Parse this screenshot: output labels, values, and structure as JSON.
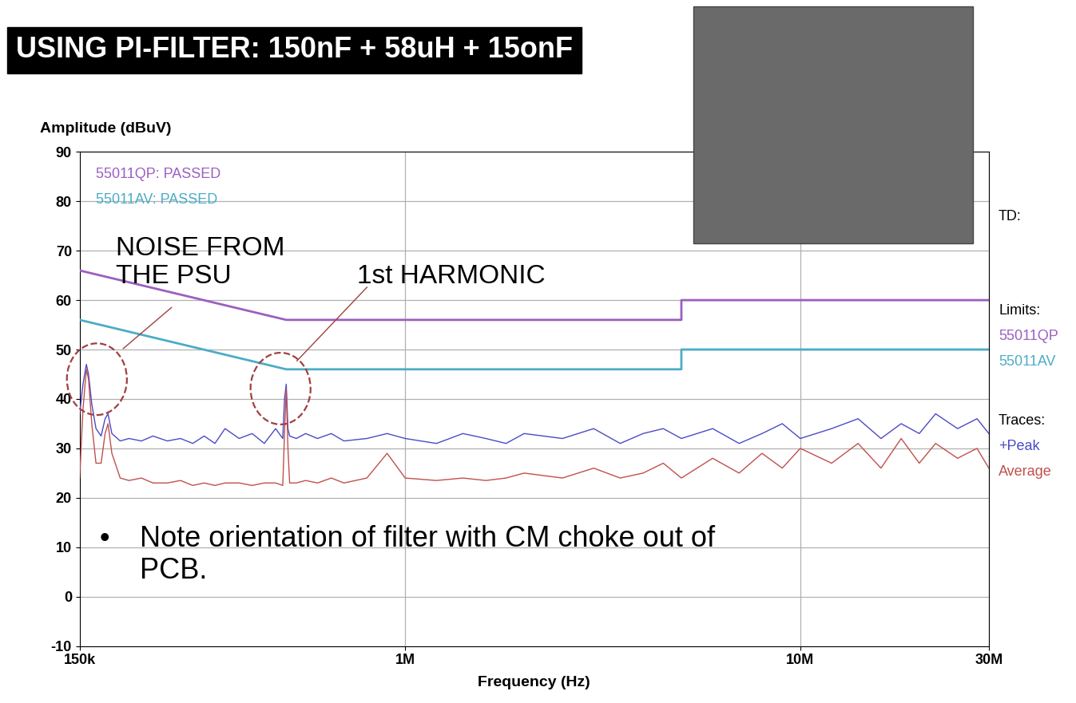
{
  "chart_data": {
    "type": "line",
    "title": "USING PI-FILTER: 150nF + 58uH + 15onF",
    "y_label": "Amplitude (dBuV)",
    "x_label": "Frequency (Hz)",
    "log": "x",
    "grid": true,
    "xlim": [
      150000,
      30000000
    ],
    "xticks": [
      {
        "value": 150000,
        "label": "150k"
      },
      {
        "value": 1000000,
        "label": "1M"
      },
      {
        "value": 10000000,
        "label": "10M"
      },
      {
        "value": 30000000,
        "label": "30M"
      }
    ],
    "ylim": [
      -10,
      90
    ],
    "yticks": [
      -10,
      0,
      10,
      20,
      30,
      40,
      50,
      60,
      70,
      80,
      90
    ],
    "status_labels": [
      "55011QP: PASSED",
      "55011AV: PASSED"
    ],
    "td_label": "TD:",
    "limits": {
      "heading": "Limits:",
      "series": [
        {
          "name": "55011QP",
          "color": "#9b5fc0",
          "x": [
            150000,
            500000,
            5000000,
            5000000,
            30000000
          ],
          "values": [
            66,
            56,
            56,
            60,
            60
          ]
        },
        {
          "name": "55011AV",
          "color": "#4bacc6",
          "x": [
            150000,
            500000,
            5000000,
            5000000,
            30000000
          ],
          "values": [
            56,
            46,
            46,
            50,
            50
          ]
        }
      ]
    },
    "traces": {
      "heading": "Traces:",
      "series": [
        {
          "name": "+Peak",
          "color": "#4a4ac8",
          "x": [
            150000,
            153000,
            156000,
            158000,
            161000,
            165000,
            170000,
            174000,
            177000,
            181000,
            190000,
            200000,
            215000,
            230000,
            250000,
            270000,
            290000,
            310000,
            330000,
            350000,
            380000,
            410000,
            440000,
            470000,
            490000,
            495000,
            500000,
            505000,
            510000,
            530000,
            560000,
            600000,
            650000,
            700000,
            800000,
            900000,
            1000000,
            1200000,
            1400000,
            1600000,
            1800000,
            2000000,
            2500000,
            3000000,
            3500000,
            4000000,
            4500000,
            5000000,
            6000000,
            7000000,
            8000000,
            9000000,
            10000000,
            12000000,
            14000000,
            16000000,
            18000000,
            20000000,
            22000000,
            25000000,
            28000000,
            30000000
          ],
          "values": [
            37,
            43,
            47,
            45,
            39,
            34,
            32.5,
            36,
            37,
            33,
            31.5,
            32,
            31.5,
            32.5,
            31.5,
            32,
            31,
            32.5,
            31,
            34,
            32,
            33,
            31,
            34,
            32,
            40,
            43,
            34,
            32.5,
            32,
            33,
            32,
            33,
            31.5,
            32,
            33,
            32,
            31,
            33,
            32,
            31,
            33,
            32,
            34,
            31,
            33,
            34,
            32,
            34,
            31,
            33,
            35,
            32,
            34,
            36,
            32,
            35,
            33,
            37,
            34,
            36,
            33
          ]
        },
        {
          "name": "Average",
          "color": "#c0504d",
          "x": [
            150000,
            153000,
            156000,
            158000,
            161000,
            165000,
            170000,
            174000,
            177000,
            181000,
            190000,
            200000,
            215000,
            230000,
            250000,
            270000,
            290000,
            310000,
            330000,
            350000,
            380000,
            410000,
            440000,
            470000,
            490000,
            495000,
            500000,
            505000,
            510000,
            530000,
            560000,
            600000,
            650000,
            700000,
            800000,
            900000,
            1000000,
            1200000,
            1400000,
            1600000,
            1800000,
            2000000,
            2500000,
            3000000,
            3500000,
            4000000,
            4500000,
            5000000,
            6000000,
            7000000,
            8000000,
            9000000,
            10000000,
            12000000,
            14000000,
            16000000,
            18000000,
            20000000,
            22000000,
            25000000,
            28000000,
            30000000
          ],
          "values": [
            24,
            38,
            46,
            44,
            35,
            27,
            27,
            33,
            35,
            29,
            24,
            23.5,
            24,
            23,
            23,
            23.5,
            22.5,
            23,
            22.5,
            23,
            23,
            22.5,
            23,
            23,
            22.5,
            33,
            42,
            30,
            23,
            23,
            23.5,
            23,
            24,
            23,
            24,
            29,
            24,
            23.5,
            24,
            23.5,
            24,
            25,
            24,
            26,
            24,
            25,
            27,
            24,
            28,
            25,
            29,
            26,
            30,
            27,
            31,
            26,
            32,
            27,
            31,
            28,
            30,
            26
          ]
        }
      ]
    },
    "annotations": [
      {
        "text": "NOISE FROM\nTHE PSU"
      },
      {
        "text": "1st HARMONIC"
      }
    ],
    "note": {
      "bullet": "•",
      "text": "Note orientation of filter with CM choke out of\nPCB."
    }
  }
}
